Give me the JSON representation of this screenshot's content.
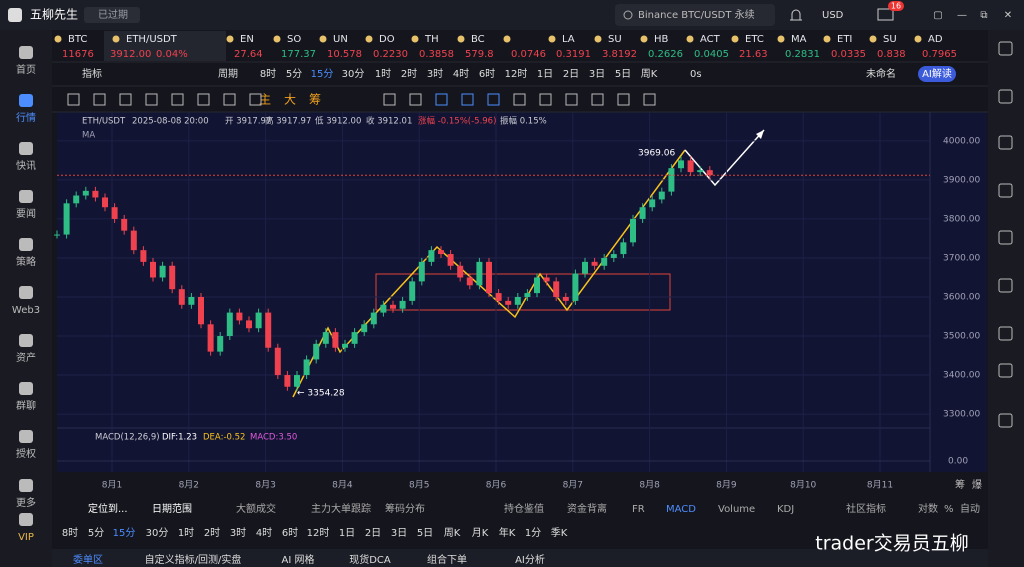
{
  "header": {
    "app_name": "五柳先生",
    "status": "已过期",
    "search": "Binance BTC/USDT 永续",
    "currency": "USD",
    "badge": "16"
  },
  "tickers": [
    {
      "name": "BTC",
      "price": "11676",
      "color": "#f0424e"
    },
    {
      "name": "ETH/USDT",
      "price": "3912.00",
      "change": "0.04%",
      "color": "#f0424e"
    },
    {
      "name": "EN",
      "price": "27.64",
      "color": "#f0424e"
    },
    {
      "name": "SO",
      "price": "177.37",
      "color": "#2ebd85"
    },
    {
      "name": "UN",
      "price": "10.578",
      "color": "#f0424e"
    },
    {
      "name": "DO",
      "price": "0.2230",
      "color": "#f0424e"
    },
    {
      "name": "TH",
      "price": "0.3858",
      "color": "#f0424e"
    },
    {
      "name": "BC",
      "price": "579.8",
      "color": "#f0424e"
    },
    {
      "name": null,
      "price": "0.0746",
      "color": "#f0424e"
    },
    {
      "name": "LA",
      "price": "0.3191",
      "color": "#f0424e"
    },
    {
      "name": "SU",
      "price": "3.8192",
      "color": "#f0424e"
    },
    {
      "name": "HB",
      "price": "0.2626",
      "color": "#2ebd85"
    },
    {
      "name": "ACT",
      "price": "0.0405",
      "color": "#2ebd85"
    },
    {
      "name": "ETC",
      "price": "21.63",
      "color": "#f0424e"
    },
    {
      "name": "MA",
      "price": "0.2831",
      "color": "#2ebd85"
    },
    {
      "name": "ETI",
      "price": "0.0335",
      "color": "#f0424e"
    },
    {
      "name": "SU",
      "price": "0.838",
      "color": "#f0424e"
    },
    {
      "name": "AD",
      "price": "0.7965",
      "color": "#f0424e"
    }
  ],
  "toolbar": {
    "indicator": "指标",
    "period": "周期",
    "periods": [
      "8时",
      "5分",
      "15分",
      "30分",
      "1时",
      "2时",
      "3时",
      "4时",
      "6时",
      "12时",
      "1日",
      "2日",
      "3日",
      "5日",
      "周K"
    ],
    "refresh": "0s",
    "layout_name": "未命名",
    "ai_button": "AI解读",
    "drawing_tools": [
      "主",
      "大",
      "筹"
    ]
  },
  "chart_data": {
    "type": "candlestick",
    "symbol": "ETH/USDT",
    "datetime": "2025-08-08 20:00",
    "open": "开 3917.97",
    "high": "高 3917.97",
    "low": "低 3912.00",
    "close": "收 3912.01",
    "change": "涨幅 -0.15%(-5.96)",
    "amplitude": "振幅 0.15%",
    "ma": "MA",
    "up_color": "#2ebd85",
    "down_color": "#f0424e",
    "values": [
      3760,
      3840,
      3860,
      3872,
      3855,
      3830,
      3800,
      3770,
      3720,
      3690,
      3650,
      3680,
      3620,
      3580,
      3600,
      3530,
      3460,
      3500,
      3560,
      3540,
      3520,
      3560,
      3470,
      3400,
      3370,
      3400,
      3440,
      3480,
      3510,
      3470,
      3480,
      3510,
      3530,
      3560,
      3580,
      3570,
      3590,
      3640,
      3690,
      3720,
      3710,
      3680,
      3650,
      3630,
      3690,
      3610,
      3590,
      3580,
      3600,
      3610,
      3650,
      3640,
      3600,
      3590,
      3660,
      3690,
      3680,
      3700,
      3710,
      3740,
      3800,
      3830,
      3850,
      3870,
      3930,
      3950,
      3920,
      3925,
      3912.01
    ],
    "ylim": [
      3272,
      4074
    ],
    "yticks": [
      {
        "value": 4000,
        "label": "4000.00"
      },
      {
        "value": 3900,
        "label": "3900.00"
      },
      {
        "value": 3800,
        "label": "3800.00"
      },
      {
        "value": 3700,
        "label": "3700.00"
      },
      {
        "value": 3600,
        "label": "3600.00"
      },
      {
        "value": 3500,
        "label": "3500.00"
      },
      {
        "value": 3400,
        "label": "3400.00"
      },
      {
        "value": 3300,
        "label": "3300.00"
      }
    ],
    "x_labels": [
      "8月1",
      "8月2",
      "8月3",
      "8月4",
      "8月5",
      "8月6",
      "8月7",
      "8月8",
      "8月9",
      "8月10",
      "8月11"
    ],
    "annotations": [
      {
        "value": 3969.06,
        "label": "3969.06"
      },
      {
        "value": 3354.28,
        "label": "← 3354.28"
      }
    ],
    "macd": {
      "label": "MACD(12,26,9)",
      "dif": "DIF:1.23",
      "dea": "DEA:-0.52",
      "macd": "MACD:3.50",
      "zero": {
        "value": 0,
        "label": "0.00"
      }
    },
    "axis_buttons": [
      "筹",
      "爆"
    ]
  },
  "indicator_tabs": [
    "定位到...",
    "日期范围",
    "大额成交",
    "主力大单跟踪",
    "筹码分布",
    "持仓鉴值",
    "资金背离",
    "FR",
    "MACD",
    "Volume",
    "KDJ",
    "社区指标",
    "对数",
    "%",
    "自动"
  ],
  "period_row": [
    "8时",
    "5分",
    "15分",
    "30分",
    "1时",
    "2时",
    "3时",
    "4时",
    "6时",
    "12时",
    "1日",
    "2日",
    "3日",
    "5日",
    "周K",
    "月K",
    "年K",
    "1分",
    "季K"
  ],
  "nav": [
    "委单区",
    "自定义指标/回测/实盘",
    "AI 网格",
    "现货DCA",
    "组合下单",
    "AI分析"
  ],
  "sidebar": [
    "首页",
    "行情",
    "快讯",
    "要闻",
    "策略",
    "Web3",
    "资产",
    "群聊",
    "授权",
    "更多",
    "VIP"
  ],
  "watermark": "trader交易员五柳"
}
